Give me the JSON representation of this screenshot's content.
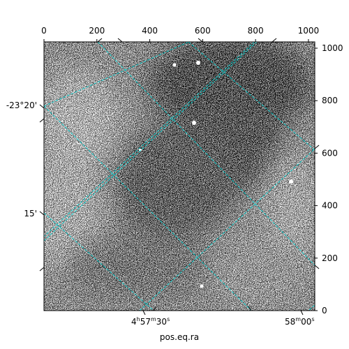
{
  "chart_data": {
    "type": "heatmap",
    "colormap": "gray",
    "xlabel": "pos.eq.ra",
    "ylabel": "",
    "pixel_axes": {
      "x_top": {
        "range": [
          0,
          1024
        ],
        "ticks": [
          0,
          200,
          400,
          600,
          800,
          1000
        ]
      },
      "y_right": {
        "range": [
          0,
          1024
        ],
        "ticks": [
          0,
          200,
          400,
          600,
          800,
          1000
        ]
      }
    },
    "world_axes": {
      "ra_bottom_ticks": [
        {
          "h": "4",
          "m": "57",
          "s": "30",
          "label_unit_h": "h",
          "label_unit_m": "m",
          "label_unit_s": "s"
        },
        {
          "h": "",
          "m": "58",
          "s": "00",
          "label_unit_h": "",
          "label_unit_m": "m",
          "label_unit_s": "s"
        }
      ],
      "dec_left_ticks": [
        "-23°20'",
        "15'"
      ]
    },
    "grid": true,
    "grid_color": "#00d0d0"
  }
}
